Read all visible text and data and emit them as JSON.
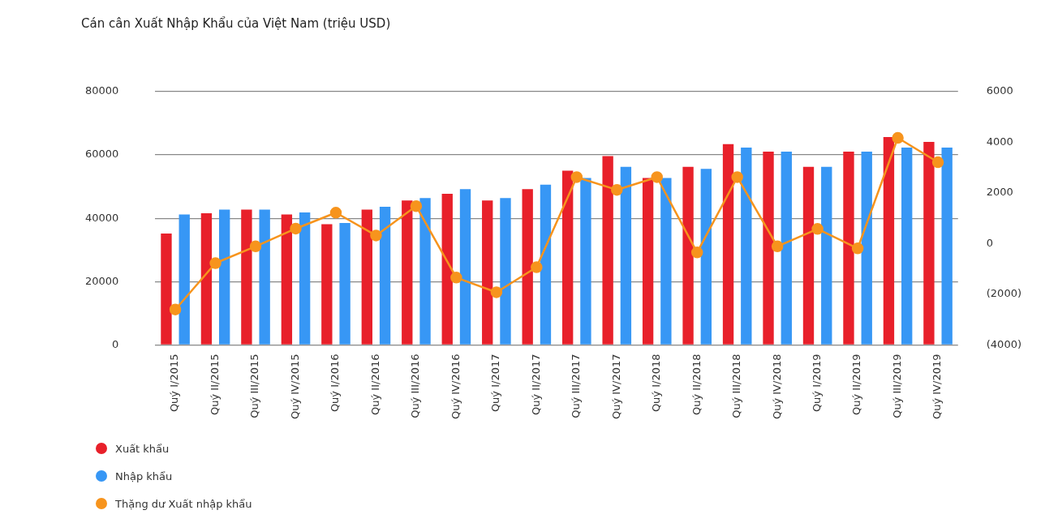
{
  "chart_data": {
    "type": "bar",
    "title": "Cán cân Xuất Nhập Khẩu của Việt Nam (triệu USD)",
    "categories": [
      "Quý I/2015",
      "Quý II/2015",
      "Quý III/2015",
      "Quý IV/2015",
      "Quý I/2016",
      "Quý II/2016",
      "Quý III/2016",
      "Quý IV/2016",
      "Quý I/2017",
      "Quý II/2017",
      "Quý III/2017",
      "Quý IV/2017",
      "Quý I/2018",
      "Quý II/2018",
      "Quý III/2018",
      "Quý IV/2018",
      "Quý I/2019",
      "Quý II/2019",
      "Quý III/2019",
      "Quý IV/2019"
    ],
    "series": [
      {
        "name": "Xuất khẩu",
        "color": "#e8202a",
        "values": [
          35200,
          41600,
          42700,
          41200,
          38100,
          42700,
          45600,
          47700,
          45600,
          49200,
          55000,
          59600,
          52700,
          56200,
          63400,
          61000,
          56200,
          61000,
          65600,
          64100
        ]
      },
      {
        "name": "Nhập khẩu",
        "color": "#3797f5",
        "values": [
          41200,
          42700,
          42700,
          41800,
          38500,
          43600,
          46400,
          49200,
          46400,
          50600,
          52700,
          56200,
          52700,
          55600,
          62300,
          61000,
          56200,
          61000,
          62300,
          62300
        ]
      },
      {
        "name": "Thặng dư Xuất nhập khẩu",
        "type": "line",
        "axis": "y2",
        "color": "#f7941d",
        "values": [
          -2600,
          -770,
          -110,
          590,
          1220,
          320,
          1480,
          -1340,
          -1920,
          -930,
          2620,
          2120,
          2620,
          -350,
          2620,
          -110,
          580,
          -190,
          4170,
          3210
        ]
      }
    ],
    "ylim": [
      0,
      80000
    ],
    "yticks": [
      0,
      20000,
      40000,
      60000,
      80000
    ],
    "y2lim": [
      -4000,
      6000
    ],
    "y2ticks": [
      {
        "value": -4000,
        "label": "(4000)"
      },
      {
        "value": -2000,
        "label": "(2000)"
      },
      0,
      2000,
      4000,
      6000
    ],
    "grid": "y",
    "legend": "bottom",
    "marker": "circle",
    "line_style": "solid"
  }
}
